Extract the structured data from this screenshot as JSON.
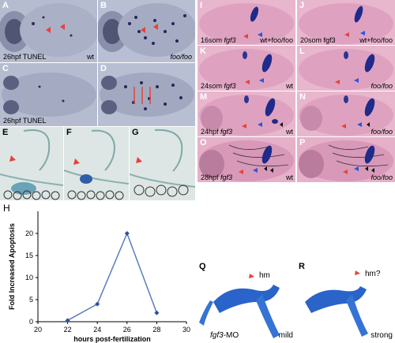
{
  "panels": {
    "A": {
      "letter": "A",
      "caption_left": "26hpf TUNEL",
      "caption_right": "wt"
    },
    "B": {
      "letter": "B",
      "caption_right": "foo/foo"
    },
    "C": {
      "letter": "C",
      "caption_left": "26hpf TUNEL"
    },
    "D": {
      "letter": "D"
    },
    "E": {
      "letter": "E"
    },
    "F": {
      "letter": "F"
    },
    "G": {
      "letter": "G"
    },
    "H": {
      "letter": "H"
    },
    "I": {
      "letter": "I",
      "caption_left_a": "16som ",
      "caption_left_b": "fgf3",
      "caption_right": "wt+foo/foo"
    },
    "J": {
      "letter": "J",
      "caption_left": "20som fgf3",
      "caption_right": "wt+foo/foo"
    },
    "K": {
      "letter": "K",
      "caption_left_a": "24som ",
      "caption_left_b": "fgf3",
      "caption_right": "wt"
    },
    "L": {
      "letter": "L",
      "caption_right": "foo/foo"
    },
    "M": {
      "letter": "M",
      "caption_left_a": "24hpf ",
      "caption_left_b": "fgf3",
      "caption_right": "wt"
    },
    "N": {
      "letter": "N",
      "caption_right": "foo/foo"
    },
    "O": {
      "letter": "O",
      "caption_left_a": "28hpf ",
      "caption_left_b": "fgf3",
      "caption_right": "wt"
    },
    "P": {
      "letter": "P",
      "caption_right": "foo/foo"
    },
    "Q": {
      "letter": "Q",
      "caption_left_a": "fgf3",
      "caption_left_b": "-MO",
      "caption_right": "mild",
      "annot": "hm"
    },
    "R": {
      "letter": "R",
      "caption_right": "strong",
      "annot": "hm?"
    }
  },
  "colors": {
    "tunel_bg": "#b9bfd3",
    "tunel_tissue": "#8d93ad",
    "pink_bg": "#e8b6cd",
    "pink_tissue": "#d998b8",
    "blue_stain": "#1f2a8a",
    "red_arrow": "#e8423a",
    "blue_arrow": "#2f54d8",
    "section_bg": "#dde6e4",
    "mo_blue": "#2a63c9",
    "chart_line": "#5a7cc1"
  },
  "chart_data": {
    "type": "line",
    "x": [
      22,
      24,
      26,
      28
    ],
    "values": [
      0.3,
      4,
      20,
      2
    ],
    "xlabel": "hours post-fertilization",
    "ylabel": "Fold Increased Apoptosis",
    "xlim": [
      20,
      30
    ],
    "ylim": [
      0,
      25
    ],
    "xticks": [
      "20",
      "22",
      "24",
      "26",
      "28",
      "30"
    ],
    "yticks": [
      "0",
      "5",
      "10",
      "15",
      "20"
    ]
  }
}
